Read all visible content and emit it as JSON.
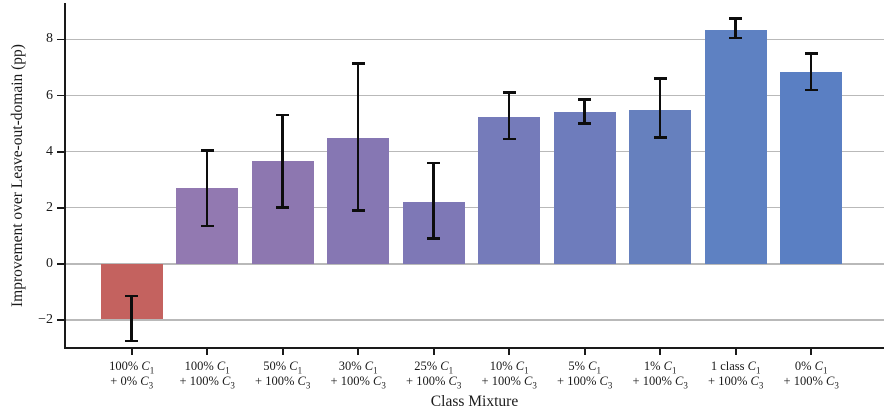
{
  "figure": {
    "background_color": "#ffffff",
    "text_color": "#1a1a1a",
    "gridline_color": "#b9b9b9",
    "errorbar_color": "#0d0d0d"
  },
  "chart_data": {
    "type": "bar",
    "title": "",
    "xlabel": "Class Mixture",
    "ylabel": "Improvement over Leave-out-domain (pp)",
    "ylim": [
      -3.0,
      9.3
    ],
    "grid": true,
    "legend": "none",
    "yticks": [
      {
        "value": -2,
        "label": "−2"
      },
      {
        "value": 0,
        "label": "0"
      },
      {
        "value": 2,
        "label": "2"
      },
      {
        "value": 4,
        "label": "4"
      },
      {
        "value": 6,
        "label": "6"
      },
      {
        "value": 8,
        "label": "8"
      }
    ],
    "categories": [
      [
        "100% C₁",
        "+ 0% C₃"
      ],
      [
        "100% C₁",
        "+ 100% C₃"
      ],
      [
        "50% C₁",
        "+ 100% C₃"
      ],
      [
        "30% C₁",
        "+ 100% C₃"
      ],
      [
        "25% C₁",
        "+ 100% C₃"
      ],
      [
        "10% C₁",
        "+ 100% C₃"
      ],
      [
        "5% C₁",
        "+ 100% C₃"
      ],
      [
        "1% C₁",
        "+ 100% C₃"
      ],
      [
        "1 class C₁",
        "+ 100% C₃"
      ],
      [
        "0% C₁",
        "+ 100% C₃"
      ]
    ],
    "values": [
      -1.95,
      2.7,
      3.65,
      4.5,
      2.2,
      5.25,
      5.4,
      5.5,
      8.35,
      6.85
    ],
    "error_low": [
      -2.75,
      1.35,
      2.0,
      1.9,
      0.9,
      4.45,
      5.0,
      4.5,
      8.05,
      6.2
    ],
    "error_high": [
      -1.15,
      4.05,
      5.3,
      7.15,
      3.6,
      6.1,
      5.85,
      6.6,
      8.75,
      7.5
    ],
    "bar_colors": [
      "#c4625f",
      "#9279b1",
      "#8d77b0",
      "#8677b3",
      "#7e78b6",
      "#757bba",
      "#6e7cbc",
      "#6680be",
      "#5e81c2",
      "#5a7fc3"
    ]
  }
}
